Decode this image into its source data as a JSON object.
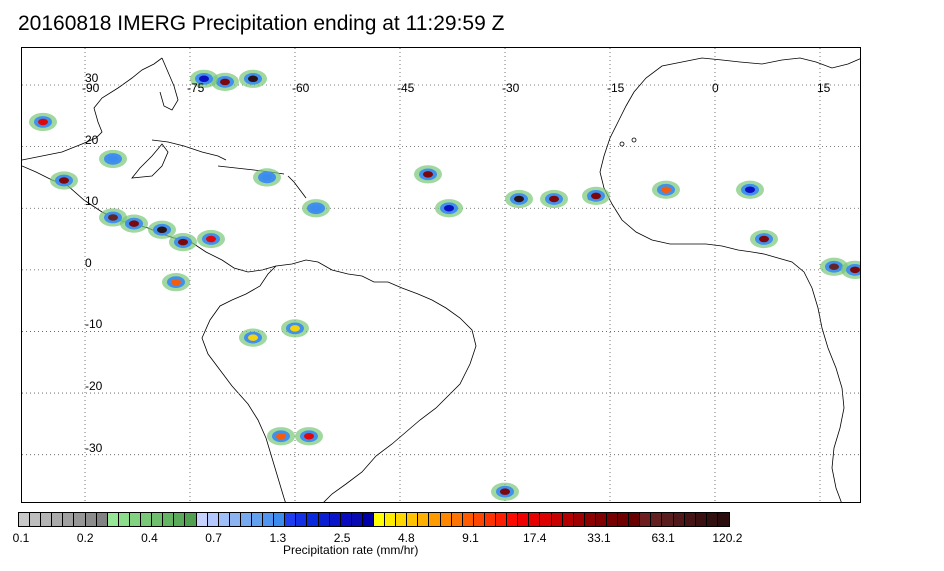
{
  "title": "20160818 IMERG Precipitation ending at 11:29:59 Z",
  "map": {
    "lon_labels": [
      {
        "lon": -90,
        "text": "-90"
      },
      {
        "lon": -75,
        "text": "-75"
      },
      {
        "lon": -60,
        "text": "-60"
      },
      {
        "lon": -45,
        "text": "-45"
      },
      {
        "lon": -30,
        "text": "-30"
      },
      {
        "lon": -15,
        "text": "-15"
      },
      {
        "lon": 0,
        "text": "0"
      },
      {
        "lon": 15,
        "text": "15"
      }
    ],
    "lat_labels": [
      {
        "lat": 30,
        "text": "30"
      },
      {
        "lat": 20,
        "text": "20"
      },
      {
        "lat": 10,
        "text": "10"
      },
      {
        "lat": 0,
        "text": "0"
      },
      {
        "lat": -10,
        "text": "-10"
      },
      {
        "lat": -20,
        "text": "-20"
      },
      {
        "lat": -30,
        "text": "-30"
      }
    ],
    "extent": {
      "lon_min": -99,
      "lon_max": 21,
      "lat_min": -38,
      "lat_max": 36
    },
    "precip_cells": [
      {
        "lon": -66,
        "lat": 31,
        "rate": 120.2
      },
      {
        "lon": -70,
        "lat": 30.5,
        "rate": 33.1
      },
      {
        "lon": -73,
        "lat": 31,
        "rate": 2.5
      },
      {
        "lon": -96,
        "lat": 24,
        "rate": 17.4
      },
      {
        "lon": -93,
        "lat": 14.5,
        "rate": 33.1
      },
      {
        "lon": -86,
        "lat": 8.5,
        "rate": 63.1
      },
      {
        "lon": -83,
        "lat": 7.5,
        "rate": 33.1
      },
      {
        "lon": -79,
        "lat": 6.5,
        "rate": 120.2
      },
      {
        "lon": -76,
        "lat": 4.5,
        "rate": 33.1
      },
      {
        "lon": -72,
        "lat": 5,
        "rate": 17.4
      },
      {
        "lon": -77,
        "lat": -2,
        "rate": 9.1
      },
      {
        "lon": -41,
        "lat": 15.5,
        "rate": 33.1
      },
      {
        "lon": -28,
        "lat": 11.5,
        "rate": 120.2
      },
      {
        "lon": -23,
        "lat": 11.5,
        "rate": 33.1
      },
      {
        "lon": -17,
        "lat": 12,
        "rate": 33.1
      },
      {
        "lon": -7,
        "lat": 13,
        "rate": 9.1
      },
      {
        "lon": 5,
        "lat": 13,
        "rate": 2.5
      },
      {
        "lon": 7,
        "lat": 5,
        "rate": 33.1
      },
      {
        "lon": 17,
        "lat": 0.5,
        "rate": 63.1
      },
      {
        "lon": 20,
        "lat": 0,
        "rate": 33.1
      },
      {
        "lon": -58,
        "lat": -27,
        "rate": 17.4
      },
      {
        "lon": -62,
        "lat": -27,
        "rate": 9.1
      },
      {
        "lon": -30,
        "lat": -36,
        "rate": 33.1
      },
      {
        "lon": -60,
        "lat": -9.5,
        "rate": 4.8
      },
      {
        "lon": -66,
        "lat": -11,
        "rate": 4.8
      },
      {
        "lon": -38,
        "lat": 10,
        "rate": 2.5
      },
      {
        "lon": -57,
        "lat": 10,
        "rate": 1.3
      },
      {
        "lon": -64,
        "lat": 15,
        "rate": 1.3
      },
      {
        "lon": -86,
        "lat": 18,
        "rate": 1.3
      }
    ]
  },
  "colorbar": {
    "colors": [
      "#c8c8c8",
      "#bebebe",
      "#b4b4b4",
      "#aaaaaa",
      "#a0a0a0",
      "#969696",
      "#8c8c8c",
      "#828282",
      "#96e696",
      "#8cdc8c",
      "#82d282",
      "#78c878",
      "#6ebe6e",
      "#64b464",
      "#5aaa5a",
      "#50a050",
      "#c8d2ff",
      "#b4c8ff",
      "#a0bef8",
      "#8cb4f0",
      "#78aaf0",
      "#64a0f0",
      "#5096f0",
      "#3c8cf0",
      "#1e3cf0",
      "#1430e6",
      "#0a28dc",
      "#0a1ed2",
      "#0a14c8",
      "#0a0abe",
      "#0a0ab4",
      "#0000aa",
      "#ffff00",
      "#ffeb00",
      "#ffd700",
      "#ffc300",
      "#ffaf00",
      "#ff9b00",
      "#ff8700",
      "#ff7300",
      "#ff5a00",
      "#ff4600",
      "#ff3200",
      "#ff1e00",
      "#ff0a00",
      "#f00000",
      "#e60000",
      "#dc0000",
      "#c80000",
      "#b40000",
      "#a00000",
      "#8c0000",
      "#800000",
      "#780000",
      "#700000",
      "#680000",
      "#6e1e1e",
      "#642020",
      "#5a1c1c",
      "#501818",
      "#461414",
      "#3c1010",
      "#321010",
      "#2a0c0c"
    ],
    "tick_labels": [
      "0.1",
      "0.2",
      "0.4",
      "0.7",
      "1.3",
      "2.5",
      "4.8",
      "9.1",
      "17.4",
      "33.1",
      "63.1",
      "120.2"
    ],
    "label": "Precipitation rate (mm/hr)"
  }
}
